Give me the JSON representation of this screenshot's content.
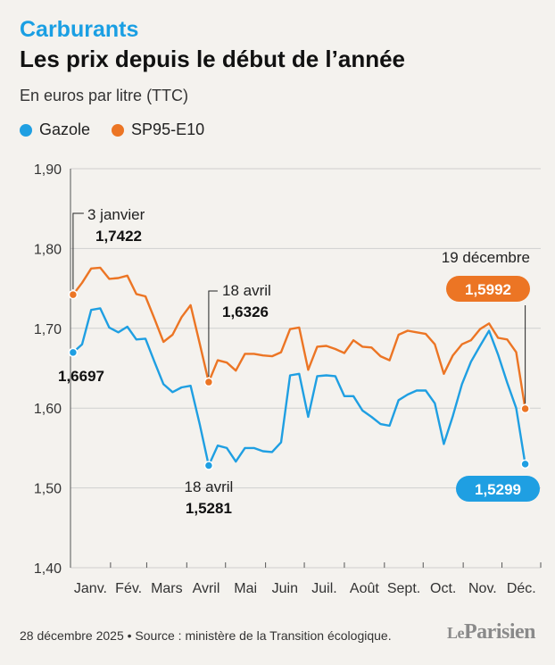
{
  "header": {
    "kicker": "Carburants",
    "title": "Les prix depuis le début de l’année"
  },
  "subtitle": "En euros par litre (TTC)",
  "legend": [
    {
      "label": "Gazole",
      "color": "#1f9fe2"
    },
    {
      "label": "SP95-E10",
      "color": "#ec7524"
    }
  ],
  "footer": {
    "source": "28 décembre 2025 • Source : ministère de la Transition écologique.",
    "logo_le": "Le",
    "logo_name": "Parisien"
  },
  "chart_data": {
    "type": "line",
    "ylim": [
      1.4,
      1.9
    ],
    "yticks": [
      "1,90",
      "1,80",
      "1,70",
      "1,60",
      "1,50",
      "1,40"
    ],
    "ytick_values": [
      1.9,
      1.8,
      1.7,
      1.6,
      1.5,
      1.4
    ],
    "grid": true,
    "x_domain": [
      "2025-01-01",
      "2025-12-31"
    ],
    "months": [
      "Janv.",
      "Fév.",
      "Mars",
      "Avril",
      "Mai",
      "Juin",
      "Juil.",
      "Août",
      "Sept.",
      "Oct.",
      "Nov.",
      "Déc."
    ],
    "x": [
      "2025-01-03",
      "2025-01-10",
      "2025-01-17",
      "2025-01-24",
      "2025-01-31",
      "2025-02-07",
      "2025-02-14",
      "2025-02-21",
      "2025-02-28",
      "2025-03-07",
      "2025-03-14",
      "2025-03-21",
      "2025-03-28",
      "2025-04-04",
      "2025-04-11",
      "2025-04-18",
      "2025-04-25",
      "2025-05-02",
      "2025-05-09",
      "2025-05-16",
      "2025-05-23",
      "2025-05-30",
      "2025-06-06",
      "2025-06-13",
      "2025-06-20",
      "2025-06-27",
      "2025-07-04",
      "2025-07-11",
      "2025-07-18",
      "2025-07-25",
      "2025-08-01",
      "2025-08-08",
      "2025-08-15",
      "2025-08-22",
      "2025-08-29",
      "2025-09-05",
      "2025-09-12",
      "2025-09-19",
      "2025-09-26",
      "2025-10-03",
      "2025-10-10",
      "2025-10-17",
      "2025-10-24",
      "2025-10-31",
      "2025-11-07",
      "2025-11-14",
      "2025-11-21",
      "2025-11-28",
      "2025-12-05",
      "2025-12-12",
      "2025-12-19"
    ],
    "series": [
      {
        "name": "Gazole",
        "color": "#1f9fe2",
        "values": [
          1.6697,
          1.68,
          1.723,
          1.725,
          1.701,
          1.695,
          1.702,
          1.686,
          1.687,
          1.658,
          1.63,
          1.62,
          1.626,
          1.628,
          1.58,
          1.5281,
          1.553,
          1.55,
          1.533,
          1.55,
          1.55,
          1.546,
          1.545,
          1.557,
          1.641,
          1.643,
          1.589,
          1.64,
          1.641,
          1.64,
          1.615,
          1.615,
          1.597,
          1.589,
          1.58,
          1.578,
          1.61,
          1.617,
          1.622,
          1.622,
          1.606,
          1.555,
          1.59,
          1.63,
          1.658,
          1.678,
          1.697,
          1.667,
          1.632,
          1.6,
          1.5299
        ]
      },
      {
        "name": "SP95-E10",
        "color": "#ec7524",
        "values": [
          1.7422,
          1.757,
          1.775,
          1.776,
          1.762,
          1.763,
          1.766,
          1.743,
          1.74,
          1.712,
          1.683,
          1.692,
          1.714,
          1.729,
          1.681,
          1.6326,
          1.66,
          1.657,
          1.647,
          1.668,
          1.668,
          1.666,
          1.665,
          1.67,
          1.699,
          1.701,
          1.648,
          1.677,
          1.678,
          1.674,
          1.669,
          1.685,
          1.677,
          1.676,
          1.665,
          1.66,
          1.692,
          1.697,
          1.695,
          1.693,
          1.68,
          1.643,
          1.666,
          1.68,
          1.685,
          1.699,
          1.706,
          1.688,
          1.686,
          1.67,
          1.5992
        ]
      }
    ],
    "annotations": [
      {
        "date": "3 janvier",
        "value": "1,7422",
        "series": "SP95-E10"
      },
      {
        "value": "1,6697",
        "series": "Gazole"
      },
      {
        "date": "18 avril",
        "value": "1,6326",
        "series": "SP95-E10"
      },
      {
        "date": "18 avril",
        "value": "1,5281",
        "series": "Gazole"
      },
      {
        "date": "19 décembre",
        "value": "1,5992",
        "series": "SP95-E10",
        "boxed": true
      },
      {
        "value": "1,5299",
        "series": "Gazole",
        "boxed": true
      }
    ]
  }
}
